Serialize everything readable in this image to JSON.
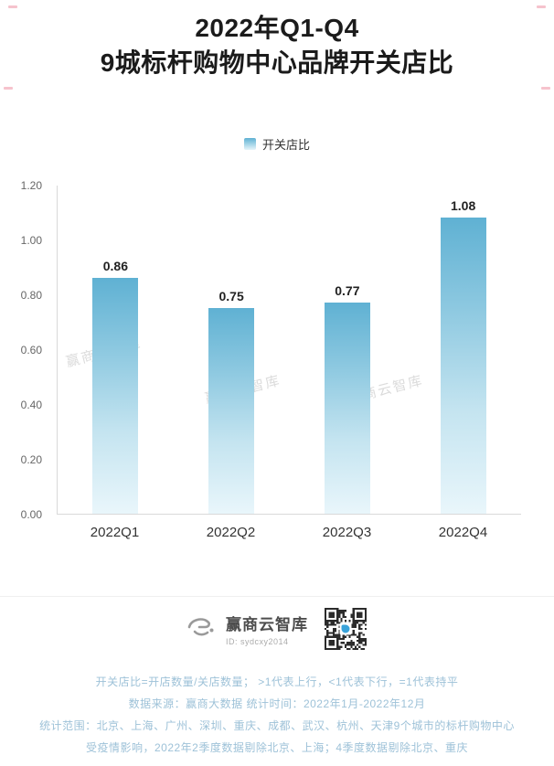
{
  "title": {
    "line1": "2022年Q1-Q4",
    "line2": "9城标杆购物中心品牌开关店比"
  },
  "legend": {
    "label": "开关店比"
  },
  "chart_data": {
    "type": "bar",
    "title": "2022年Q1-Q4 9城标杆购物中心品牌开关店比",
    "series_name": "开关店比",
    "categories": [
      "2022Q1",
      "2022Q2",
      "2022Q3",
      "2022Q4"
    ],
    "values": [
      0.86,
      0.75,
      0.77,
      1.08
    ],
    "value_labels": [
      "0.86",
      "0.75",
      "0.77",
      "1.08"
    ],
    "xlabel": "",
    "ylabel": "",
    "ylim": [
      0,
      1.2
    ],
    "yticks": [
      0,
      0.2,
      0.4,
      0.6,
      0.8,
      1.0,
      1.2
    ],
    "ytick_labels": [
      "0.00",
      "0.20",
      "0.40",
      "0.60",
      "0.80",
      "1.00",
      "1.20"
    ],
    "grid": false,
    "legend_position": "top",
    "bar_gradient": [
      "#5fb1d3",
      "#e9f6fb"
    ]
  },
  "watermark": {
    "text": "赢商云智库"
  },
  "footer": {
    "brand_name": "赢商云智库",
    "brand_id": "ID: sydcxy2014",
    "notes": [
      "开关店比=开店数量/关店数量； >1代表上行，<1代表下行，=1代表持平",
      "数据来源：赢商大数据  统计时间：2022年1月-2022年12月",
      "统计范围：北京、上海、广州、深圳、重庆、成都、武汉、杭州、天津9个城市的标杆购物中心",
      "受疫情影响，2022年2季度数据剔除北京、上海；4季度数据剔除北京、重庆"
    ]
  },
  "accents": {
    "pink_mark": "#f6c3cd",
    "note_text": "#9ec2d8"
  }
}
